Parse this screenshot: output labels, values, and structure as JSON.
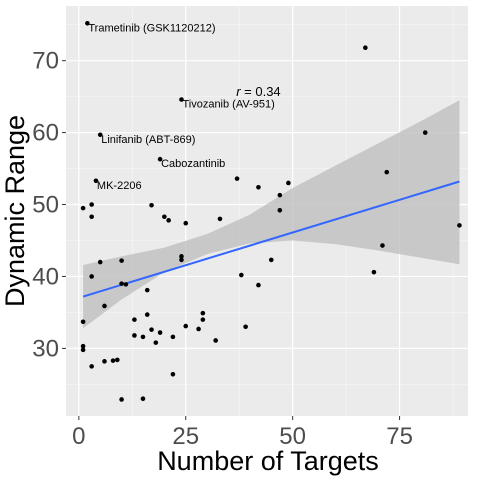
{
  "chart_data": {
    "type": "scatter",
    "xlabel": "Number of Targets",
    "ylabel": "Dynamic Range",
    "xlim": [
      -3,
      91
    ],
    "ylim": [
      20.6,
      77.6
    ],
    "x_ticks": [
      0,
      25,
      50,
      75
    ],
    "y_ticks": [
      30,
      40,
      50,
      60,
      70
    ],
    "grid": true,
    "background": "#ebebeb",
    "point_color": "#000000",
    "trend_color": "#3366ff",
    "ribbon_color": "#bfbfbf",
    "annotation": {
      "text": "r = 0.34",
      "italic_part": "r",
      "rest": " = 0.34",
      "x": 42,
      "y": 65.8
    },
    "trend": {
      "x": [
        1,
        89
      ],
      "y": [
        37.2,
        53.2
      ]
    },
    "ribbon": {
      "x": [
        1,
        10,
        20,
        30,
        40,
        50,
        60,
        70,
        80,
        89
      ],
      "lower": [
        32.8,
        36.8,
        40.6,
        43.1,
        44.6,
        45.0,
        44.5,
        43.6,
        42.6,
        41.7
      ],
      "upper": [
        41.6,
        42.8,
        44.0,
        45.9,
        48.6,
        52.3,
        55.4,
        58.5,
        61.6,
        64.5
      ]
    },
    "labeled_points": [
      {
        "label": "Trametinib (GSK1120212)",
        "x": 2,
        "y": 75.2
      },
      {
        "label": "Tivozanib (AV-951)",
        "x": 24,
        "y": 64.6
      },
      {
        "label": "Linifanib (ABT-869)",
        "x": 5,
        "y": 59.7
      },
      {
        "label": "Cabozantinib",
        "x": 19,
        "y": 56.3
      },
      {
        "label": "MK-2206",
        "x": 4,
        "y": 53.3
      }
    ],
    "points": [
      {
        "x": 67,
        "y": 71.8
      },
      {
        "x": 81,
        "y": 60.0
      },
      {
        "x": 72,
        "y": 54.5
      },
      {
        "x": 37,
        "y": 53.6
      },
      {
        "x": 42,
        "y": 52.4
      },
      {
        "x": 49,
        "y": 53.0
      },
      {
        "x": 47,
        "y": 51.3
      },
      {
        "x": 47,
        "y": 49.2
      },
      {
        "x": 89,
        "y": 47.1
      },
      {
        "x": 1,
        "y": 49.5
      },
      {
        "x": 3,
        "y": 50.0
      },
      {
        "x": 3,
        "y": 48.3
      },
      {
        "x": 17,
        "y": 49.9
      },
      {
        "x": 20,
        "y": 48.3
      },
      {
        "x": 21,
        "y": 47.8
      },
      {
        "x": 25,
        "y": 47.4
      },
      {
        "x": 33,
        "y": 48.0
      },
      {
        "x": 24,
        "y": 42.8
      },
      {
        "x": 24,
        "y": 42.3
      },
      {
        "x": 45,
        "y": 42.3
      },
      {
        "x": 71,
        "y": 44.3
      },
      {
        "x": 69,
        "y": 40.6
      },
      {
        "x": 38,
        "y": 40.2
      },
      {
        "x": 42,
        "y": 38.8
      },
      {
        "x": 5,
        "y": 42.0
      },
      {
        "x": 10,
        "y": 42.2
      },
      {
        "x": 3,
        "y": 40.0
      },
      {
        "x": 10,
        "y": 39.0
      },
      {
        "x": 11,
        "y": 38.9
      },
      {
        "x": 16,
        "y": 38.1
      },
      {
        "x": 6,
        "y": 35.9
      },
      {
        "x": 1,
        "y": 33.7
      },
      {
        "x": 13,
        "y": 34.0
      },
      {
        "x": 16,
        "y": 34.7
      },
      {
        "x": 25,
        "y": 33.1
      },
      {
        "x": 29,
        "y": 34.9
      },
      {
        "x": 29,
        "y": 34.0
      },
      {
        "x": 39,
        "y": 33.0
      },
      {
        "x": 17,
        "y": 32.6
      },
      {
        "x": 19,
        "y": 32.2
      },
      {
        "x": 28,
        "y": 32.7
      },
      {
        "x": 13,
        "y": 31.8
      },
      {
        "x": 15,
        "y": 31.6
      },
      {
        "x": 18,
        "y": 30.8
      },
      {
        "x": 22,
        "y": 31.6
      },
      {
        "x": 32,
        "y": 31.1
      },
      {
        "x": 1,
        "y": 30.3
      },
      {
        "x": 1,
        "y": 29.8
      },
      {
        "x": 6,
        "y": 28.2
      },
      {
        "x": 8,
        "y": 28.3
      },
      {
        "x": 9,
        "y": 28.4
      },
      {
        "x": 3,
        "y": 27.5
      },
      {
        "x": 22,
        "y": 26.4
      },
      {
        "x": 10,
        "y": 22.9
      },
      {
        "x": 15,
        "y": 23.0
      }
    ]
  }
}
